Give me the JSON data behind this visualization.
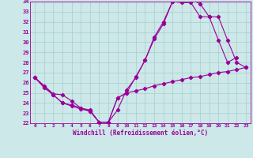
{
  "xlabel": "Windchill (Refroidissement éolien,°C)",
  "bg_color": "#cce8e8",
  "grid_color": "#aacccc",
  "line_color": "#990099",
  "xlim": [
    -0.5,
    23.5
  ],
  "ylim": [
    22,
    34
  ],
  "yticks": [
    22,
    23,
    24,
    25,
    26,
    27,
    28,
    29,
    30,
    31,
    32,
    33,
    34
  ],
  "xticks": [
    0,
    1,
    2,
    3,
    4,
    5,
    6,
    7,
    8,
    9,
    10,
    11,
    12,
    13,
    14,
    15,
    16,
    17,
    18,
    19,
    20,
    21,
    22,
    23
  ],
  "series": [
    {
      "x": [
        0,
        1,
        2,
        3,
        4,
        5,
        6,
        7,
        8,
        9,
        10,
        11,
        12,
        13,
        14,
        15,
        16,
        17,
        18,
        19,
        20,
        21,
        22
      ],
      "y": [
        26.5,
        25.7,
        24.9,
        24.8,
        24.2,
        23.5,
        23.2,
        22.1,
        22.1,
        23.3,
        25.3,
        26.5,
        28.2,
        30.3,
        31.8,
        34.0,
        34.2,
        34.2,
        33.8,
        32.5,
        30.2,
        28.0,
        28.5
      ]
    },
    {
      "x": [
        0,
        1,
        2,
        3,
        4,
        5,
        6,
        7,
        8,
        9,
        10,
        11,
        12,
        13,
        14,
        15,
        16,
        17,
        18,
        19,
        20,
        21,
        22,
        23
      ],
      "y": [
        26.5,
        25.5,
        24.8,
        24.0,
        23.7,
        23.4,
        23.2,
        22.1,
        22.1,
        24.5,
        25.0,
        26.6,
        28.2,
        30.5,
        32.0,
        34.0,
        33.9,
        33.9,
        32.5,
        32.5,
        32.5,
        30.2,
        28.0,
        27.5
      ]
    },
    {
      "x": [
        0,
        1,
        2,
        3,
        4,
        5,
        6,
        7,
        8,
        9,
        10,
        11,
        12,
        13,
        14,
        15,
        16,
        17,
        18,
        19,
        20,
        21,
        22,
        23
      ],
      "y": [
        26.5,
        25.6,
        24.8,
        24.0,
        23.8,
        23.5,
        23.3,
        22.1,
        22.1,
        24.5,
        25.0,
        25.2,
        25.4,
        25.7,
        25.9,
        26.1,
        26.3,
        26.5,
        26.6,
        26.8,
        27.0,
        27.1,
        27.3,
        27.5
      ]
    }
  ]
}
